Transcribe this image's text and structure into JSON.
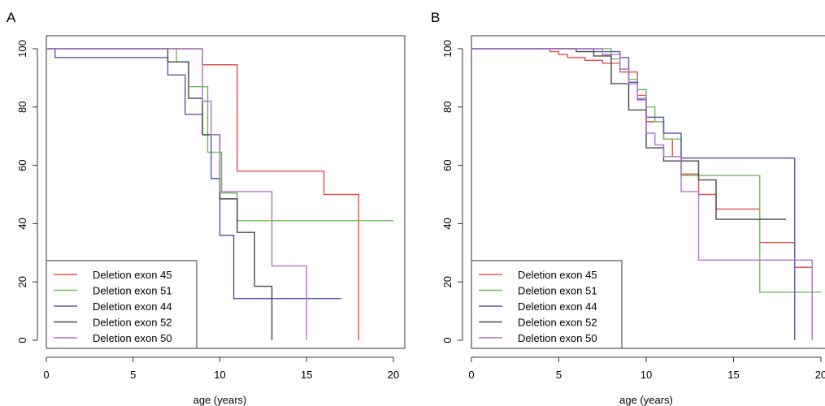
{
  "chart_data": [
    {
      "panel_label": "A",
      "type": "line",
      "step": true,
      "xlabel": "age (years)",
      "ylabel": "",
      "xlim": [
        0,
        20
      ],
      "ylim": [
        0,
        100
      ],
      "x_ticks": [
        0,
        5,
        10,
        15,
        20
      ],
      "y_ticks": [
        0,
        20,
        40,
        60,
        80,
        100
      ],
      "grid": false,
      "legend_position": "bottom-left",
      "series": [
        {
          "name": "Deletion exon 45",
          "color": "#e8504a",
          "x": [
            0,
            9,
            11,
            16,
            18,
            18
          ],
          "y": [
            100,
            94.5,
            58,
            50,
            50,
            0
          ]
        },
        {
          "name": "Deletion exon 51",
          "color": "#6fbf5a",
          "x": [
            0,
            7.5,
            8.2,
            9.3,
            10.1,
            11,
            20
          ],
          "y": [
            100,
            95.5,
            87,
            64.5,
            50.5,
            41,
            41
          ]
        },
        {
          "name": "Deletion exon 44",
          "color": "#5b5aa8",
          "x": [
            0,
            0.5,
            7,
            8,
            9,
            9.5,
            10,
            10.8,
            17
          ],
          "y": [
            100,
            97,
            91,
            77.5,
            70.5,
            55.5,
            36,
            14.3,
            14.3
          ]
        },
        {
          "name": "Deletion exon 52",
          "color": "#4a4a4a",
          "x": [
            0,
            7,
            8.2,
            9,
            10,
            11,
            12,
            13,
            13
          ],
          "y": [
            100,
            95.5,
            83,
            70.5,
            48.5,
            37,
            18.5,
            0,
            0
          ]
        },
        {
          "name": "Deletion exon 50",
          "color": "#b274cf",
          "x": [
            0,
            9,
            9.5,
            10,
            13,
            15,
            15
          ],
          "y": [
            100,
            82,
            70.5,
            51,
            25.5,
            0,
            0
          ]
        }
      ]
    },
    {
      "panel_label": "B",
      "type": "line",
      "step": true,
      "xlabel": "age (years)",
      "ylabel": "",
      "xlim": [
        0,
        20
      ],
      "ylim": [
        0,
        100
      ],
      "x_ticks": [
        0,
        5,
        10,
        15,
        20
      ],
      "y_ticks": [
        0,
        20,
        40,
        60,
        80,
        100
      ],
      "grid": false,
      "legend_position": "bottom-left",
      "series": [
        {
          "name": "Deletion exon 45",
          "color": "#e8504a",
          "x": [
            0,
            4.5,
            5,
            5.5,
            6.5,
            7.5,
            8.5,
            9.5,
            10,
            11,
            11.5,
            12,
            13,
            14,
            16.5,
            18.5,
            19.5,
            19.5
          ],
          "y": [
            100,
            99,
            98,
            97,
            96,
            95,
            92,
            84,
            75,
            69,
            63,
            57,
            50,
            45,
            33.5,
            25,
            25,
            0
          ]
        },
        {
          "name": "Deletion exon 51",
          "color": "#6fbf5a",
          "x": [
            0,
            8,
            8.5,
            9,
            9.5,
            10,
            10.5,
            11,
            12,
            13,
            16.5,
            20
          ],
          "y": [
            100,
            96.5,
            93,
            89.5,
            86,
            80,
            75,
            69,
            56.5,
            56.5,
            16.5,
            16.5
          ]
        },
        {
          "name": "Deletion exon 44",
          "color": "#5b5aa8",
          "x": [
            0,
            7,
            8.5,
            9,
            9.5,
            10,
            11,
            12,
            18.5,
            18.5
          ],
          "y": [
            100,
            99,
            97,
            88.5,
            82.5,
            76.5,
            71,
            62.5,
            62.5,
            0
          ]
        },
        {
          "name": "Deletion exon 52",
          "color": "#4a4a4a",
          "x": [
            0,
            6,
            7,
            8,
            9,
            10,
            11,
            13,
            14,
            18
          ],
          "y": [
            100,
            99,
            97.5,
            88,
            79,
            66,
            61.5,
            55,
            41.5,
            41.5
          ]
        },
        {
          "name": "Deletion exon 50",
          "color": "#b274cf",
          "x": [
            0,
            7.5,
            8.5,
            9,
            9.5,
            10,
            10.5,
            11,
            12,
            13,
            19.5,
            19.5
          ],
          "y": [
            100,
            98,
            93,
            88,
            83,
            71,
            67,
            63,
            51,
            27.5,
            27.5,
            0
          ]
        }
      ]
    }
  ]
}
